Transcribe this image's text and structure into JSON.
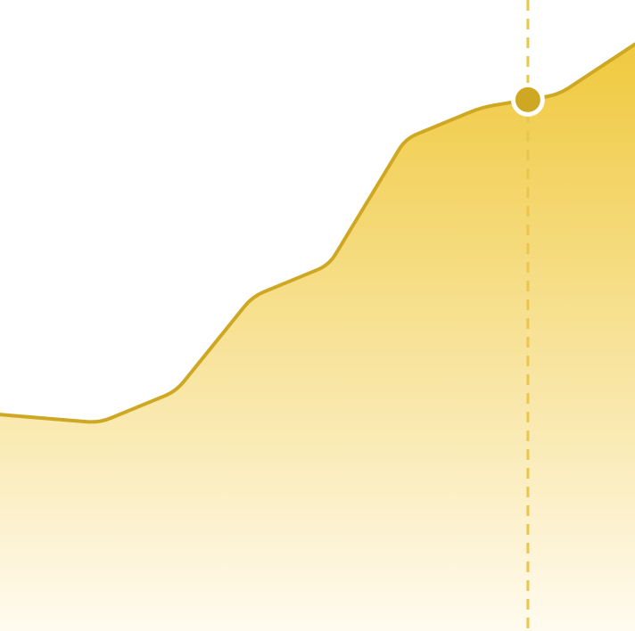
{
  "chart_data": {
    "type": "area",
    "x": [
      0,
      1,
      2,
      3,
      4,
      5,
      6,
      7,
      8
    ],
    "series": [
      {
        "values": [
          34,
          33,
          38,
          53,
          58,
          78,
          83,
          85,
          93
        ]
      }
    ],
    "xlim": [
      -0.3,
      8
    ],
    "ylim": [
      0,
      100
    ],
    "highlight_index": 6.6,
    "highlight_value": 84.2,
    "grid": false,
    "legend": "none"
  },
  "colors": {
    "line": "#CFA823",
    "fill_top": "#F0C93E",
    "fill_bottom": "#FFFBEF",
    "marker": "#CFA823",
    "marker_ring": "#FFFFFF",
    "guide": "#E9C650"
  }
}
